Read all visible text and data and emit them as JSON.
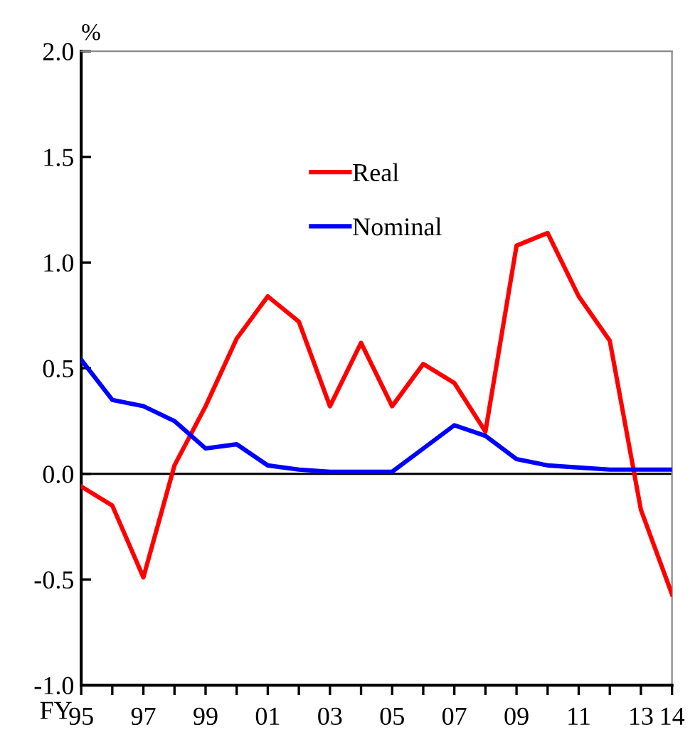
{
  "chart_data": {
    "type": "line",
    "ylabel": "%",
    "xlabel": "FY",
    "categories": [
      "95",
      null,
      "97",
      null,
      "99",
      null,
      "01",
      null,
      "03",
      null,
      "05",
      null,
      "07",
      null,
      "09",
      null,
      "11",
      null,
      "13",
      "14"
    ],
    "series": [
      {
        "name": "Real",
        "color": "#ff0000",
        "values": [
          -0.06,
          -0.15,
          -0.49,
          0.04,
          0.32,
          0.64,
          0.84,
          0.72,
          0.32,
          0.62,
          0.32,
          0.52,
          0.43,
          0.2,
          1.08,
          1.14,
          0.84,
          0.63,
          -0.17,
          -0.57
        ]
      },
      {
        "name": "Nominal",
        "color": "#0000ff",
        "values": [
          0.54,
          0.35,
          0.32,
          0.25,
          0.12,
          0.14,
          0.04,
          0.02,
          0.01,
          0.01,
          0.01,
          0.12,
          0.23,
          0.18,
          0.07,
          0.04,
          0.03,
          0.02,
          0.02,
          0.02
        ]
      }
    ],
    "ylim": [
      -1.0,
      2.0
    ],
    "yticks": [
      {
        "value": -1.0,
        "label": "-1.0"
      },
      {
        "value": -0.5,
        "label": "-0.5"
      },
      {
        "value": 0.0,
        "label": "0.0"
      },
      {
        "value": 0.5,
        "label": "0.5"
      },
      {
        "value": 1.0,
        "label": "1.0"
      },
      {
        "value": 1.5,
        "label": "1.5"
      },
      {
        "value": 2.0,
        "label": "2.0"
      }
    ],
    "ref_lines": [
      {
        "axis": "y",
        "value": 0,
        "color": "#000000"
      }
    ],
    "grid": false,
    "legend": "top",
    "marker": "none",
    "line_style": "solid"
  }
}
